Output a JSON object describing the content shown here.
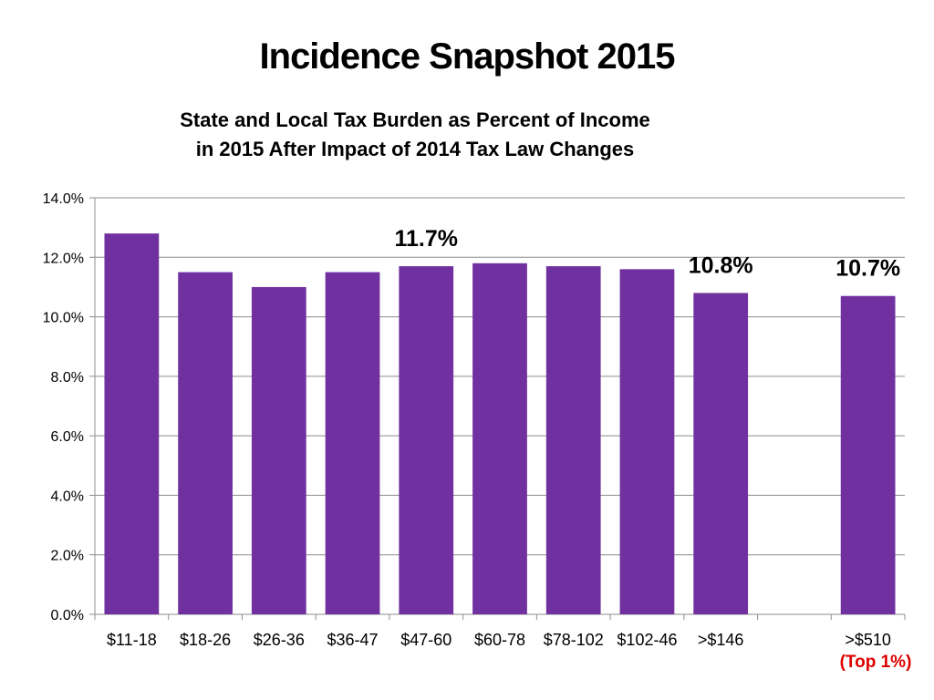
{
  "slide": {
    "title": "Incidence Snapshot 2015",
    "note": "(Top 1%)",
    "note_color": "#e00000"
  },
  "chart_data": {
    "type": "bar",
    "title_lines": [
      "State and Local Tax Burden as Percent of Income",
      "in 2015 After Impact of 2014 Tax Law Changes"
    ],
    "categories": [
      "$11-18",
      "$18-26",
      "$26-36",
      "$36-47",
      "$47-60",
      "$60-78",
      "$78-102",
      "$102-46",
      ">$146",
      "",
      ">$510"
    ],
    "values": [
      12.8,
      11.5,
      11.0,
      11.5,
      11.7,
      11.8,
      11.7,
      11.6,
      10.8,
      null,
      10.7
    ],
    "data_labels": [
      {
        "index": 4,
        "text": "11.7%"
      },
      {
        "index": 8,
        "text": "10.8%"
      },
      {
        "index": 10,
        "text": "10.7%"
      }
    ],
    "ylim": [
      0,
      14
    ],
    "yticks": [
      0,
      2,
      4,
      6,
      8,
      10,
      12,
      14
    ],
    "ytick_labels": [
      "0.0%",
      "2.0%",
      "4.0%",
      "6.0%",
      "8.0%",
      "10.0%",
      "12.0%",
      "14.0%"
    ],
    "xlabel": "",
    "ylabel": "",
    "grid": true,
    "legend": false,
    "bar_color": "#7030a0",
    "grid_color": "#8c8c8c"
  }
}
